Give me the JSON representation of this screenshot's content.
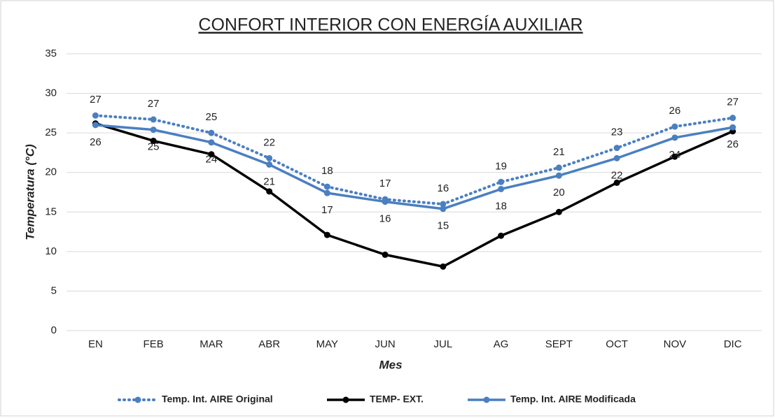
{
  "chart_data": {
    "type": "line",
    "title": "CONFORT INTERIOR CON ENERGÍA AUXILIAR",
    "x_label": "Mes",
    "y_label": "Temperatura (°C)",
    "categories": [
      "EN",
      "FEB",
      "MAR",
      "ABR",
      "MAY",
      "JUN",
      "JUL",
      "AG",
      "SEPT",
      "OCT",
      "NOV",
      "DIC"
    ],
    "series": [
      {
        "name": "Temp. Int. AIRE Original",
        "color": "#4a7fc1",
        "dash": true,
        "label_side": "above",
        "values": [
          27.2,
          26.7,
          25.0,
          21.8,
          18.2,
          16.6,
          16.0,
          18.8,
          20.6,
          23.1,
          25.8,
          26.9
        ],
        "value_labels": [
          "27",
          "27",
          "25",
          "22",
          "18",
          "17",
          "16",
          "19",
          "21",
          "23",
          "26",
          "27"
        ]
      },
      {
        "name": "TEMP- EXT.",
        "color": "#000000",
        "dash": false,
        "values": [
          26.2,
          24.0,
          22.3,
          17.6,
          12.1,
          9.6,
          8.1,
          12.0,
          15.0,
          18.7,
          22.0,
          25.2
        ]
      },
      {
        "name": "Temp. Int. AIRE Modificada",
        "color": "#4a7fc1",
        "dash": false,
        "label_side": "below",
        "values": [
          26.0,
          25.4,
          23.8,
          21.0,
          17.4,
          16.3,
          15.4,
          17.9,
          19.6,
          21.8,
          24.4,
          25.7
        ],
        "value_labels": [
          "26",
          "25",
          "24",
          "21",
          "17",
          "16",
          "15",
          "18",
          "20",
          "22",
          "24",
          "26"
        ]
      }
    ],
    "ylim": [
      0,
      35
    ],
    "yticks": [
      0,
      5,
      10,
      15,
      20,
      25,
      30,
      35
    ],
    "grid": true,
    "legend": "bottom"
  }
}
